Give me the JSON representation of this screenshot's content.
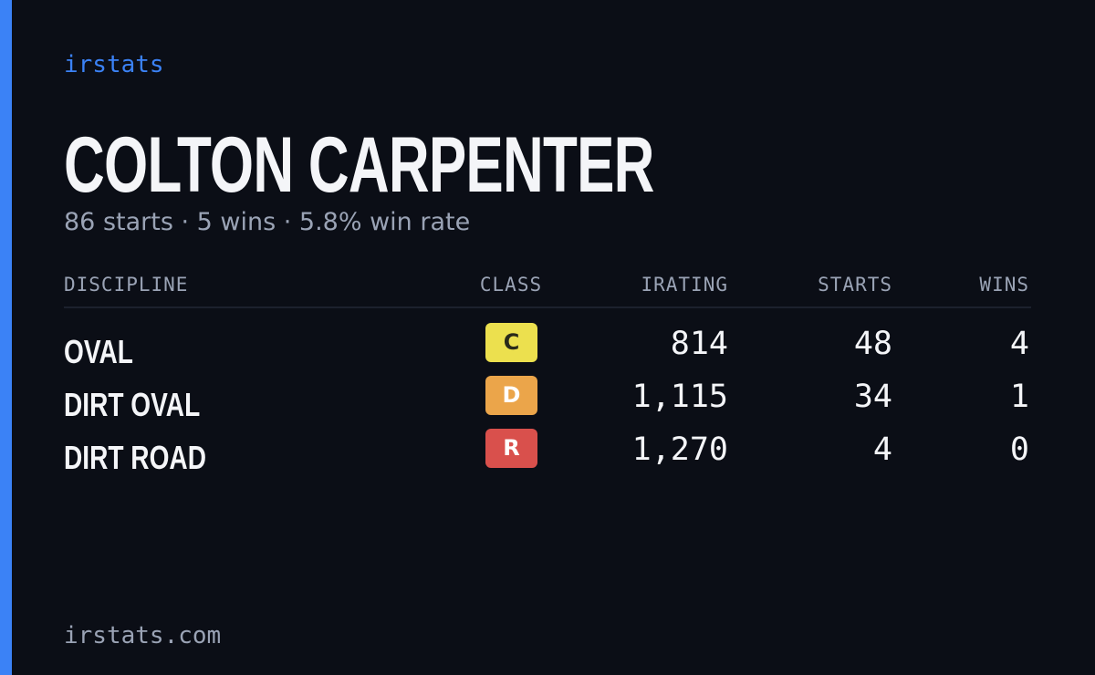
{
  "brand": "irstats",
  "driver": {
    "name": "COLTON CARPENTER",
    "summary": "86 starts · 5 wins · 5.8% win rate"
  },
  "table": {
    "headers": [
      "DISCIPLINE",
      "CLASS",
      "IRATING",
      "STARTS",
      "WINS"
    ],
    "rows": [
      [
        "OVAL",
        "C",
        "814",
        "48",
        "4"
      ],
      [
        "DIRT OVAL",
        "D",
        "1,115",
        "34",
        "1"
      ],
      [
        "DIRT ROAD",
        "R",
        "1,270",
        "4",
        "0"
      ]
    ],
    "class_colors": [
      "#ece04e",
      "#eba54a",
      "#d9504c"
    ]
  },
  "footer": "irstats.com"
}
